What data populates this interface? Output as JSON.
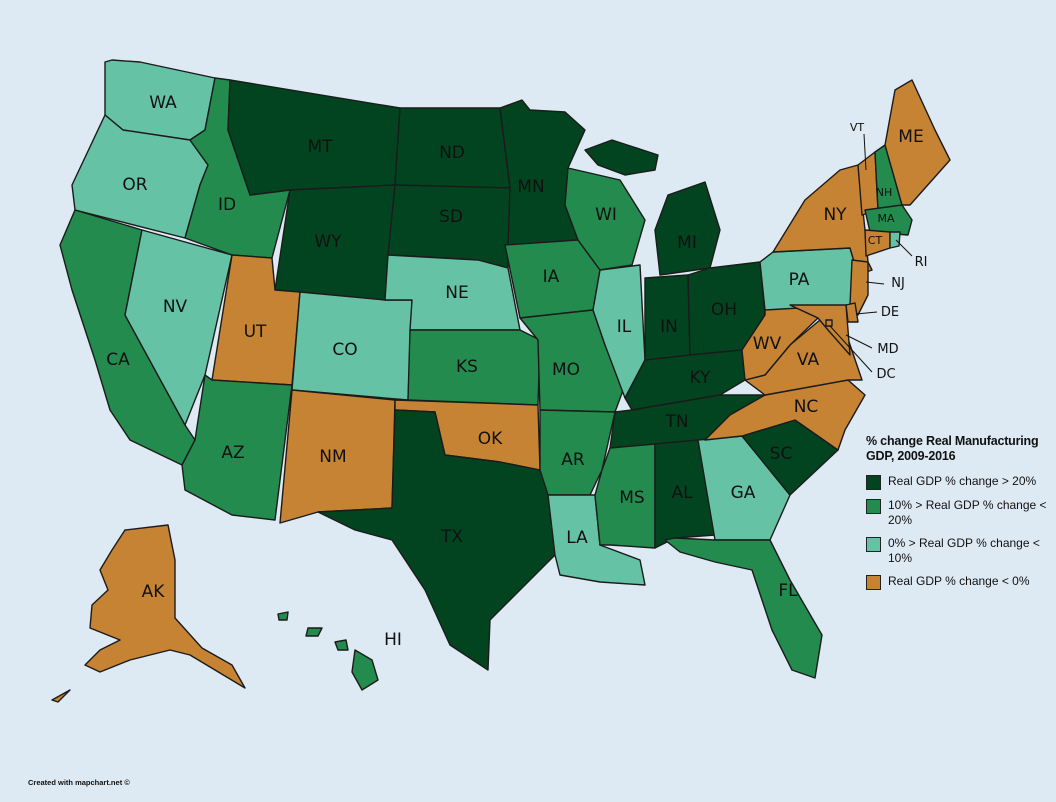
{
  "legend": {
    "title": "% change Real Manufacturing GDP, 2009-2016",
    "items": [
      {
        "label": "Real GDP % change > 20%",
        "color": "#034420"
      },
      {
        "label": "10% > Real GDP % change < 20%",
        "color": "#238b4d"
      },
      {
        "label": "0% > Real GDP % change < 10%",
        "color": "#66c2a4"
      },
      {
        "label": "Real GDP % change < 0%",
        "color": "#c68334"
      }
    ]
  },
  "credit": "Created with mapchart.net ©",
  "categories": {
    "gt20": [
      "MT",
      "ND",
      "SD",
      "WY",
      "MN",
      "MI",
      "IN",
      "OH",
      "KY",
      "TN",
      "TX",
      "AL",
      "SC"
    ],
    "10to20": [
      "ID",
      "CA",
      "AZ",
      "KS",
      "IA",
      "MO",
      "WI",
      "AR",
      "MS",
      "FL",
      "NH",
      "MA",
      "HI"
    ],
    "0to10": [
      "WA",
      "OR",
      "NV",
      "CO",
      "NE",
      "IL",
      "LA",
      "GA",
      "PA",
      "RI"
    ],
    "lt0": [
      "UT",
      "NM",
      "OK",
      "AK",
      "ME",
      "VT",
      "NY",
      "CT",
      "NJ",
      "DE",
      "MD",
      "WV",
      "VA",
      "NC",
      "DC"
    ]
  },
  "states": {
    "WA": "WA",
    "OR": "OR",
    "CA": "CA",
    "NV": "NV",
    "ID": "ID",
    "MT": "MT",
    "WY": "WY",
    "UT": "UT",
    "AZ": "AZ",
    "CO": "CO",
    "NM": "NM",
    "ND": "ND",
    "SD": "SD",
    "NE": "NE",
    "KS": "KS",
    "OK": "OK",
    "TX": "TX",
    "MN": "MN",
    "IA": "IA",
    "MO": "MO",
    "AR": "AR",
    "LA": "LA",
    "WI": "WI",
    "IL": "IL",
    "MI": "MI",
    "IN": "IN",
    "OH": "OH",
    "KY": "KY",
    "TN": "TN",
    "MS": "MS",
    "AL": "AL",
    "GA": "GA",
    "FL": "FL",
    "SC": "SC",
    "NC": "NC",
    "VA": "VA",
    "WV": "WV",
    "PA": "PA",
    "NY": "NY",
    "VT": "VT",
    "NH": "NH",
    "ME": "ME",
    "MA": "MA",
    "CT": "CT",
    "RI": "RI",
    "NJ": "NJ",
    "DE": "DE",
    "MD": "MD",
    "DC": "DC",
    "AK": "AK",
    "HI": "HI"
  }
}
